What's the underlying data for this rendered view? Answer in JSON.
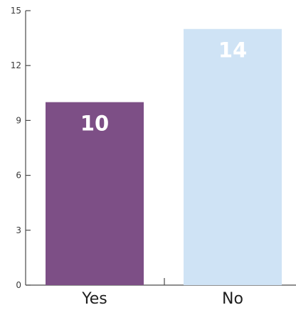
{
  "chart_data": {
    "type": "bar",
    "categories": [
      "Yes",
      "No"
    ],
    "values": [
      10,
      14
    ],
    "data_labels": [
      "10",
      "14"
    ],
    "ylim": [
      0,
      15
    ],
    "yticks": [
      0,
      3,
      6,
      9,
      12,
      15
    ],
    "title": "",
    "xlabel": "",
    "ylabel": "",
    "grid": false,
    "legend": "none",
    "colors": {
      "bars": [
        "#7d4f86",
        "#cfe3f5"
      ],
      "axis": "#4a4a4a",
      "data_label": "#ffffff"
    }
  }
}
